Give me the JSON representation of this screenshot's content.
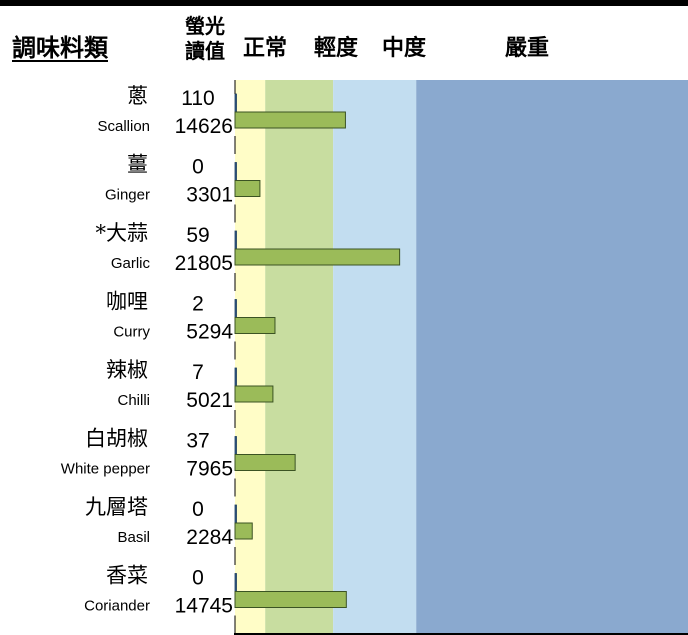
{
  "headers": {
    "category": "調味料類",
    "reading_line1": "螢光",
    "reading_line2": "讀值",
    "normal": "正常",
    "mild": "輕度",
    "moderate": "中度",
    "severe": "嚴重"
  },
  "colors": {
    "zone_normal": "#FFFDC7",
    "zone_mild": "#C8DDA0",
    "zone_moderate": "#C2DDF0",
    "zone_severe": "#8AA9CF",
    "bar_small": "#2E5A8A",
    "bar_large": "#9BBB59",
    "bar_large_border": "#3B5323"
  },
  "chart_data": {
    "type": "bar",
    "orientation": "horizontal",
    "xlim": [
      0,
      60000
    ],
    "zones": [
      {
        "label": "正常",
        "from": 0,
        "to": 4000
      },
      {
        "label": "輕度",
        "from": 4000,
        "to": 13000
      },
      {
        "label": "中度",
        "from": 13000,
        "to": 24000
      },
      {
        "label": "嚴重",
        "from": 24000,
        "to": 60000
      }
    ],
    "items": [
      {
        "cn": "蔥",
        "en": "Scallion",
        "small": 110,
        "large": 14626
      },
      {
        "cn": "薑",
        "en": "Ginger",
        "small": 0,
        "large": 3301
      },
      {
        "cn": "*大蒜",
        "en": "Garlic",
        "small": 59,
        "large": 21805
      },
      {
        "cn": "咖哩",
        "en": "Curry",
        "small": 2,
        "large": 5294
      },
      {
        "cn": "辣椒",
        "en": "Chilli",
        "small": 7,
        "large": 5021
      },
      {
        "cn": "白胡椒",
        "en": "White pepper",
        "small": 37,
        "large": 7965
      },
      {
        "cn": "九層塔",
        "en": "Basil",
        "small": 0,
        "large": 2284
      },
      {
        "cn": "香菜",
        "en": "Coriander",
        "small": 0,
        "large": 14745
      }
    ]
  }
}
